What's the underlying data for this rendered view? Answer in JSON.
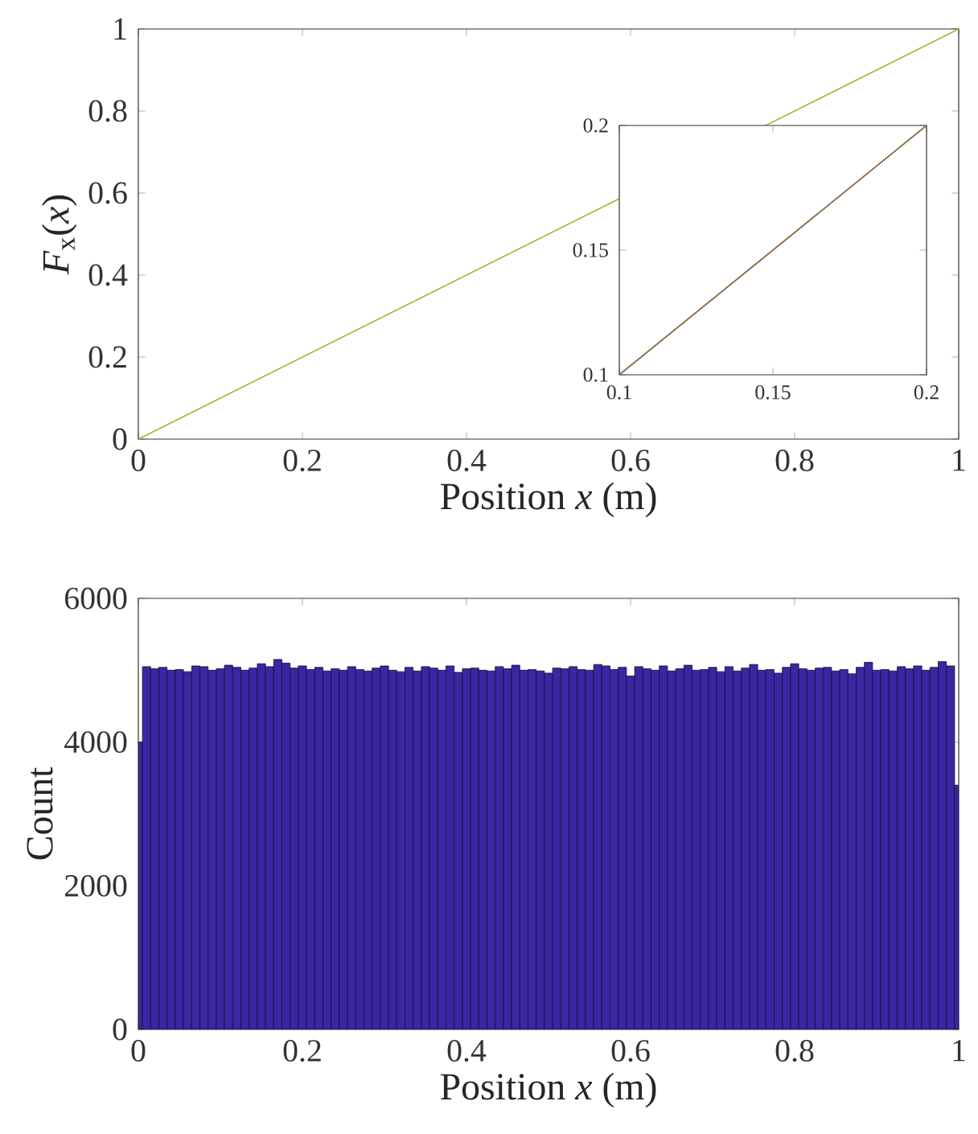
{
  "chart_data": [
    {
      "type": "line",
      "xlabel": "Position *x* (m)",
      "ylabel": "*F*$_{x}$(*x*)",
      "xlim": [
        0,
        1
      ],
      "ylim": [
        0,
        1
      ],
      "xticks": [
        0,
        0.2,
        0.4,
        0.6,
        0.8,
        1
      ],
      "yticks": [
        0,
        0.2,
        0.4,
        0.6,
        0.8,
        1
      ],
      "grid": false,
      "series": [
        {
          "color": "#9cbf3a",
          "x": [
            0,
            0.2,
            0.4,
            0.5,
            0.8,
            1
          ],
          "values": [
            0,
            0.2,
            0.4,
            0.5,
            0.8,
            1
          ]
        }
      ]
    },
    {
      "type": "line",
      "xlim": [
        0.1,
        0.2
      ],
      "ylim": [
        0.1,
        0.2
      ],
      "xticks": [
        0.1,
        0.15,
        0.2
      ],
      "yticks": [
        0.1,
        0.15,
        0.2
      ],
      "grid": false,
      "series": [
        {
          "color": "#8a6a48",
          "x": [
            0.1,
            0.15,
            0.2
          ],
          "values": [
            0.1,
            0.15,
            0.2
          ]
        }
      ]
    },
    {
      "type": "histogram",
      "xlabel": "Position *x* (m)",
      "ylabel": "Count",
      "xlim": [
        0,
        1
      ],
      "ylim": [
        0,
        6000
      ],
      "xticks": [
        0,
        0.2,
        0.4,
        0.6,
        0.8,
        1
      ],
      "yticks": [
        0,
        2000,
        4000,
        6000
      ],
      "grid": false,
      "color": "#3b27a3",
      "bins": [
        0,
        0.005,
        0.015,
        0.025,
        0.035,
        0.045,
        0.055,
        0.065,
        0.075,
        0.085,
        0.095,
        0.105,
        0.115,
        0.125,
        0.135,
        0.145,
        0.155,
        0.165,
        0.175,
        0.185,
        0.195,
        0.205,
        0.215,
        0.225,
        0.235,
        0.245,
        0.255,
        0.265,
        0.275,
        0.285,
        0.295,
        0.305,
        0.315,
        0.325,
        0.335,
        0.345,
        0.355,
        0.365,
        0.375,
        0.385,
        0.395,
        0.405,
        0.415,
        0.425,
        0.435,
        0.445,
        0.455,
        0.465,
        0.475,
        0.485,
        0.495,
        0.505,
        0.515,
        0.525,
        0.535,
        0.545,
        0.555,
        0.565,
        0.575,
        0.585,
        0.595,
        0.605,
        0.615,
        0.625,
        0.635,
        0.645,
        0.655,
        0.665,
        0.675,
        0.685,
        0.695,
        0.705,
        0.715,
        0.725,
        0.735,
        0.745,
        0.755,
        0.765,
        0.775,
        0.785,
        0.795,
        0.805,
        0.815,
        0.825,
        0.835,
        0.845,
        0.855,
        0.865,
        0.875,
        0.885,
        0.895,
        0.905,
        0.915,
        0.925,
        0.935,
        0.945,
        0.955,
        0.965,
        0.975,
        0.985,
        0.995,
        1
      ],
      "values": [
        4000,
        5050,
        5020,
        5040,
        5000,
        5010,
        4980,
        5060,
        5050,
        5000,
        5020,
        5070,
        5040,
        5000,
        5030,
        5090,
        5050,
        5150,
        5100,
        5030,
        5060,
        5010,
        5040,
        4990,
        5020,
        5000,
        5050,
        5010,
        4990,
        5030,
        5060,
        5000,
        4980,
        5040,
        4990,
        5050,
        5030,
        5000,
        5060,
        4970,
        5020,
        5030,
        5000,
        4990,
        5050,
        5020,
        5070,
        5000,
        5010,
        4990,
        4960,
        5030,
        5020,
        5050,
        5010,
        5000,
        5080,
        5060,
        5010,
        5040,
        4920,
        5050,
        5020,
        5000,
        5060,
        4990,
        5020,
        5070,
        5000,
        5010,
        5040,
        4980,
        5050,
        4990,
        5030,
        5080,
        5000,
        5010,
        4960,
        5040,
        5090,
        5020,
        5000,
        5030,
        5040,
        4990,
        5010,
        4950,
        5040,
        5110,
        5000,
        5010,
        4990,
        5050,
        5020,
        5060,
        5000,
        5040,
        5120,
        5060,
        3400
      ]
    }
  ]
}
